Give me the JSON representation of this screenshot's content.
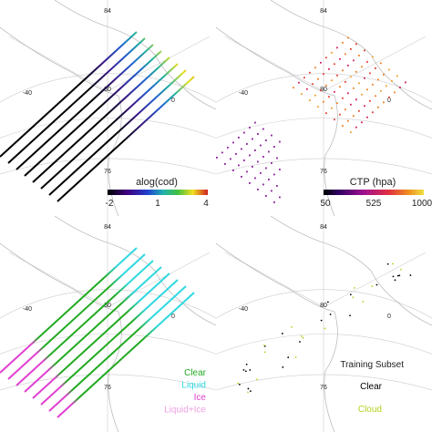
{
  "panels": [
    {
      "graticule": {
        "lat_top": "84",
        "lon_left": "-40",
        "lat_mid": "80",
        "lon_right": "0",
        "lat_bottom": "76"
      },
      "colorbar": {
        "title": "alog(cod)",
        "ticks": [
          "-2",
          "1",
          "4"
        ]
      }
    },
    {
      "graticule": {
        "lat_top": "84",
        "lon_left": "-40",
        "lat_mid": "80",
        "lon_right": "0",
        "lat_bottom": "76"
      },
      "colorbar": {
        "title": "CTP (hpa)",
        "ticks": [
          "50",
          "525",
          "1000"
        ]
      }
    },
    {
      "graticule": {
        "lat_top": "84",
        "lon_left": "-40",
        "lat_mid": "80",
        "lon_right": "0",
        "lat_bottom": "76"
      },
      "legend": [
        "Clear",
        "Liquid",
        "Ice",
        "Liquid+Ice"
      ]
    },
    {
      "graticule": {
        "lat_top": "84",
        "lon_left": "-40",
        "lat_mid": "80",
        "lon_right": "0",
        "lat_bottom": "76"
      },
      "legend_title": "Training Subset",
      "legend": [
        "Clear",
        "Cloud"
      ]
    }
  ]
}
